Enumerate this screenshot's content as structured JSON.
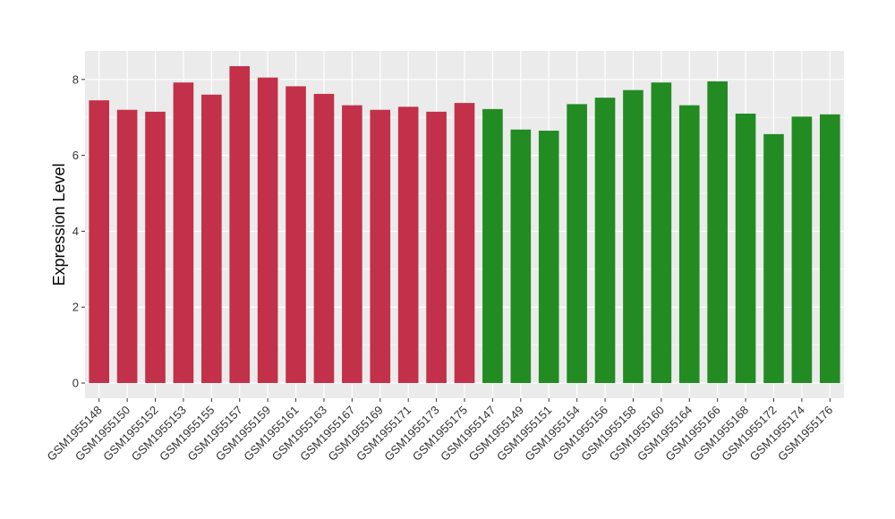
{
  "chart_data": {
    "type": "bar",
    "title": "",
    "xlabel": "",
    "ylabel": "Expression Level",
    "ylim": [
      -0.4,
      8.75
    ],
    "yticks": [
      0,
      2,
      4,
      6,
      8
    ],
    "grid": true,
    "legend": "none",
    "background": "#ebebeb",
    "gridline_color": "#ffffff",
    "categories": [
      "GSM1955148",
      "GSM1955150",
      "GSM1955152",
      "GSM1955153",
      "GSM1955155",
      "GSM1955157",
      "GSM1955159",
      "GSM1955161",
      "GSM1955163",
      "GSM1955167",
      "GSM1955169",
      "GSM1955171",
      "GSM1955173",
      "GSM1955175",
      "GSM1955147",
      "GSM1955149",
      "GSM1955151",
      "GSM1955154",
      "GSM1955156",
      "GSM1955158",
      "GSM1955160",
      "GSM1955164",
      "GSM1955166",
      "GSM1955168",
      "GSM1955172",
      "GSM1955174",
      "GSM1955176"
    ],
    "values": [
      7.45,
      7.2,
      7.15,
      7.92,
      7.6,
      8.35,
      8.05,
      7.82,
      7.62,
      7.32,
      7.2,
      7.28,
      7.15,
      7.38,
      7.22,
      6.68,
      6.65,
      7.35,
      7.52,
      7.72,
      7.92,
      7.32,
      7.95,
      7.1,
      6.56,
      7.02,
      7.08
    ],
    "colors": [
      "#c23049",
      "#c23049",
      "#c23049",
      "#c23049",
      "#c23049",
      "#c23049",
      "#c23049",
      "#c23049",
      "#c23049",
      "#c23049",
      "#c23049",
      "#c23049",
      "#c23049",
      "#c23049",
      "#228b22",
      "#228b22",
      "#228b22",
      "#228b22",
      "#228b22",
      "#228b22",
      "#228b22",
      "#228b22",
      "#228b22",
      "#228b22",
      "#228b22",
      "#228b22",
      "#228b22"
    ]
  }
}
